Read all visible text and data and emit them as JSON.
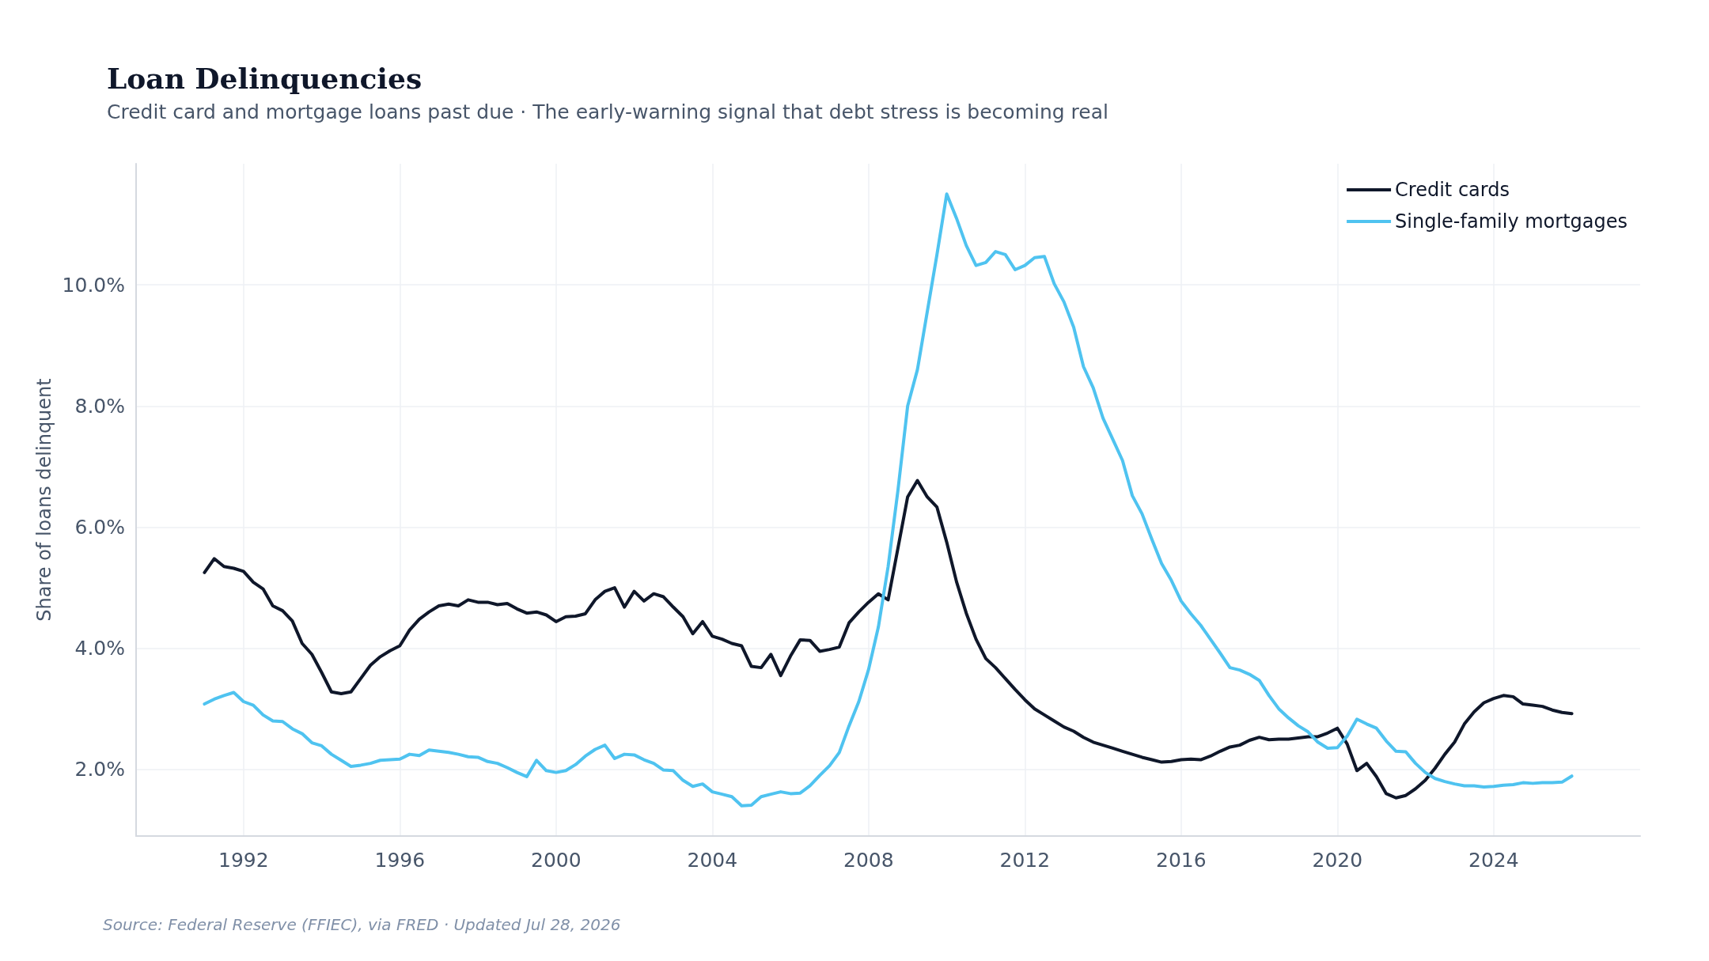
{
  "chart_data": {
    "type": "line",
    "title": "Loan Delinquencies",
    "subtitle": "Credit card and mortgage loans past due · The early-warning signal that debt stress is becoming real",
    "ylabel": "Share of loans delinquent",
    "annotations": [
      "Source: Federal Reserve (FFIEC), via FRED · Updated Jul 28, 2026"
    ],
    "x": [
      1991,
      1991.25,
      1991.5,
      1991.75,
      1992,
      1992.25,
      1992.5,
      1992.75,
      1993,
      1993.25,
      1993.5,
      1993.75,
      1994,
      1994.25,
      1994.5,
      1994.75,
      1995,
      1995.25,
      1995.5,
      1995.75,
      1996,
      1996.25,
      1996.5,
      1996.75,
      1997,
      1997.25,
      1997.5,
      1997.75,
      1998,
      1998.25,
      1998.5,
      1998.75,
      1999,
      1999.25,
      1999.5,
      1999.75,
      2000,
      2000.25,
      2000.5,
      2000.75,
      2001,
      2001.25,
      2001.5,
      2001.75,
      2002,
      2002.25,
      2002.5,
      2002.75,
      2003,
      2003.25,
      2003.5,
      2003.75,
      2004,
      2004.25,
      2004.5,
      2004.75,
      2005,
      2005.25,
      2005.5,
      2005.75,
      2006,
      2006.25,
      2006.5,
      2006.75,
      2007,
      2007.25,
      2007.5,
      2007.75,
      2008,
      2008.25,
      2008.5,
      2008.75,
      2009,
      2009.25,
      2009.5,
      2009.75,
      2010,
      2010.25,
      2010.5,
      2010.75,
      2011,
      2011.25,
      2011.5,
      2011.75,
      2012,
      2012.25,
      2012.5,
      2012.75,
      2013,
      2013.25,
      2013.5,
      2013.75,
      2014,
      2014.25,
      2014.5,
      2014.75,
      2015,
      2015.25,
      2015.5,
      2015.75,
      2016,
      2016.25,
      2016.5,
      2016.75,
      2017,
      2017.25,
      2017.5,
      2017.75,
      2018,
      2018.25,
      2018.5,
      2018.75,
      2019,
      2019.25,
      2019.5,
      2019.75,
      2020,
      2020.25,
      2020.5,
      2020.75,
      2021,
      2021.25,
      2021.5,
      2021.75,
      2022,
      2022.25,
      2022.5,
      2022.75,
      2023,
      2023.25,
      2023.5,
      2023.75,
      2024,
      2024.25,
      2024.5,
      2024.75,
      2025,
      2025.25,
      2025.5,
      2025.75,
      2026
    ],
    "series": [
      {
        "name": "Credit cards",
        "color": "#0f172a",
        "values": [
          5.25,
          5.48,
          5.35,
          5.32,
          5.27,
          5.09,
          4.98,
          4.7,
          4.62,
          4.45,
          4.08,
          3.9,
          3.6,
          3.28,
          3.25,
          3.28,
          3.5,
          3.72,
          3.86,
          3.96,
          4.04,
          4.3,
          4.48,
          4.6,
          4.7,
          4.73,
          4.7,
          4.8,
          4.76,
          4.76,
          4.72,
          4.74,
          4.65,
          4.58,
          4.6,
          4.55,
          4.44,
          4.52,
          4.53,
          4.57,
          4.8,
          4.94,
          5.0,
          4.68,
          4.94,
          4.78,
          4.9,
          4.85,
          4.68,
          4.52,
          4.24,
          4.44,
          4.2,
          4.15,
          4.08,
          4.04,
          3.7,
          3.68,
          3.9,
          3.55,
          3.87,
          4.14,
          4.13,
          3.95,
          3.98,
          4.02,
          4.42,
          4.6,
          4.76,
          4.9,
          4.8,
          5.65,
          6.5,
          6.77,
          6.5,
          6.33,
          5.75,
          5.1,
          4.58,
          4.15,
          3.83,
          3.68,
          3.5,
          3.32,
          3.15,
          3.0,
          2.9,
          2.8,
          2.7,
          2.63,
          2.53,
          2.45,
          2.4,
          2.35,
          2.3,
          2.25,
          2.2,
          2.16,
          2.12,
          2.13,
          2.16,
          2.17,
          2.16,
          2.22,
          2.3,
          2.37,
          2.4,
          2.48,
          2.53,
          2.49,
          2.5,
          2.5,
          2.52,
          2.54,
          2.54,
          2.6,
          2.68,
          2.42,
          1.98,
          2.1,
          1.88,
          1.6,
          1.53,
          1.57,
          1.68,
          1.82,
          2.02,
          2.25,
          2.45,
          2.75,
          2.95,
          3.1,
          3.17,
          3.22,
          3.2,
          3.08,
          3.06,
          3.04,
          2.98,
          2.94,
          2.92
        ]
      },
      {
        "name": "Single-family mortgages",
        "color": "#4fc3f0",
        "values": [
          3.08,
          3.16,
          3.22,
          3.27,
          3.12,
          3.06,
          2.9,
          2.8,
          2.79,
          2.67,
          2.59,
          2.44,
          2.39,
          2.25,
          2.15,
          2.05,
          2.07,
          2.1,
          2.15,
          2.16,
          2.17,
          2.25,
          2.23,
          2.32,
          2.3,
          2.28,
          2.25,
          2.21,
          2.2,
          2.13,
          2.1,
          2.03,
          1.95,
          1.88,
          2.15,
          1.98,
          1.95,
          1.98,
          2.08,
          2.22,
          2.33,
          2.4,
          2.18,
          2.25,
          2.24,
          2.16,
          2.1,
          1.99,
          1.98,
          1.82,
          1.72,
          1.76,
          1.63,
          1.59,
          1.55,
          1.4,
          1.41,
          1.55,
          1.59,
          1.63,
          1.6,
          1.61,
          1.73,
          1.9,
          2.06,
          2.28,
          2.72,
          3.12,
          3.65,
          4.35,
          5.35,
          6.6,
          8.0,
          8.6,
          9.55,
          10.5,
          11.5,
          11.1,
          10.65,
          10.32,
          10.37,
          10.55,
          10.5,
          10.25,
          10.32,
          10.45,
          10.47,
          10.02,
          9.72,
          9.3,
          8.65,
          8.3,
          7.8,
          7.45,
          7.1,
          6.52,
          6.22,
          5.8,
          5.4,
          5.12,
          4.78,
          4.57,
          4.38,
          4.15,
          3.92,
          3.68,
          3.64,
          3.57,
          3.47,
          3.22,
          3.0,
          2.85,
          2.72,
          2.62,
          2.45,
          2.35,
          2.36,
          2.55,
          2.83,
          2.75,
          2.68,
          2.47,
          2.3,
          2.29,
          2.1,
          1.95,
          1.85,
          1.8,
          1.76,
          1.73,
          1.73,
          1.71,
          1.72,
          1.74,
          1.75,
          1.78,
          1.77,
          1.78,
          1.78,
          1.79,
          1.89
        ]
      }
    ],
    "xlim": [
      1989.25,
      2027.75
    ],
    "xticks": [
      1992,
      1996,
      2000,
      2004,
      2008,
      2012,
      2016,
      2020,
      2024
    ],
    "ylim": [
      0.9,
      12
    ],
    "yticks": [
      {
        "value": 2,
        "label": "2.0%"
      },
      {
        "value": 4,
        "label": "4.0%"
      },
      {
        "value": 6,
        "label": "6.0%"
      },
      {
        "value": 8,
        "label": "8.0%"
      },
      {
        "value": 10,
        "label": "10.0%"
      }
    ],
    "grid": true,
    "legend": "top right",
    "marker": "none",
    "line_style": "solid"
  }
}
